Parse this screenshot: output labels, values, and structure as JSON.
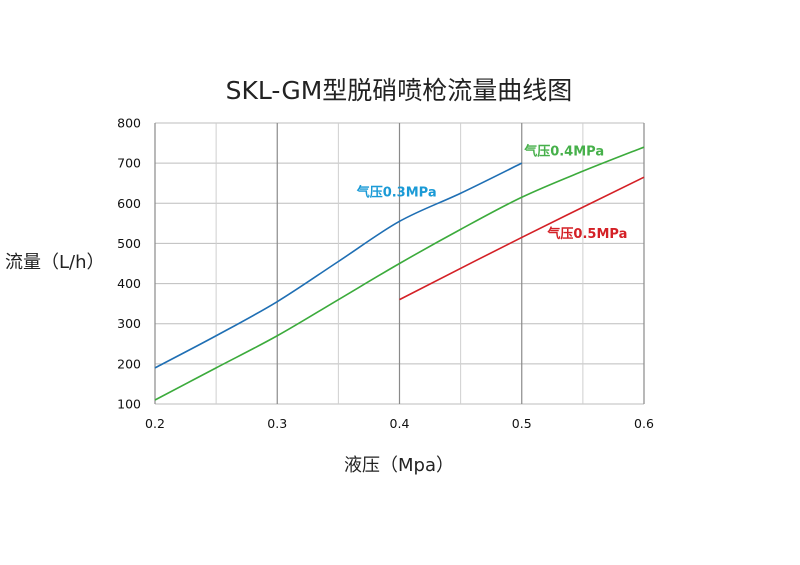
{
  "chart_data": {
    "type": "line",
    "title": "SKL-GM型脱硝喷枪流量曲线图",
    "xlabel": "液压（Mpa）",
    "ylabel": "流量（L/h）",
    "xlim": [
      0.2,
      0.6
    ],
    "ylim": [
      100,
      800
    ],
    "xticks": [
      "0.2",
      "0.3",
      "0.4",
      "0.5",
      "0.6"
    ],
    "yticks": [
      "100",
      "200",
      "300",
      "400",
      "500",
      "600",
      "700",
      "800"
    ],
    "grid": true,
    "series": [
      {
        "name": "气压0.3MPa",
        "color": "#1f6fb4",
        "label_color": "#1a9ad6",
        "x": [
          0.2,
          0.25,
          0.3,
          0.35,
          0.4,
          0.45,
          0.5
        ],
        "y": [
          190,
          270,
          355,
          455,
          555,
          625,
          700
        ]
      },
      {
        "name": "气压0.4MPa",
        "color": "#3cab3c",
        "label_color": "#46b04a",
        "x": [
          0.2,
          0.25,
          0.3,
          0.35,
          0.4,
          0.45,
          0.5,
          0.55,
          0.6
        ],
        "y": [
          110,
          190,
          270,
          360,
          450,
          535,
          615,
          680,
          740
        ]
      },
      {
        "name": "气压0.5MPa",
        "color": "#d42026",
        "label_color": "#d42026",
        "x": [
          0.4,
          0.5,
          0.6
        ],
        "y": [
          360,
          515,
          665
        ]
      }
    ]
  }
}
